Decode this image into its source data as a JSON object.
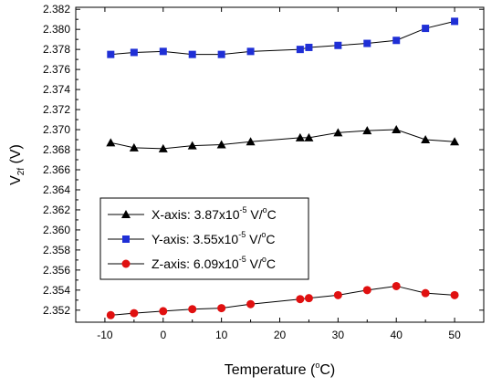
{
  "chart_data": {
    "type": "line",
    "xlabel": "Temperature (",
    "xlabel_degree": "o",
    "xlabel_unit": "C)",
    "ylabel_main": "V",
    "ylabel_sub": "2f",
    "ylabel_unit": " (V)",
    "xlim": [
      -15,
      55
    ],
    "ylim": [
      2.3508,
      2.3822
    ],
    "x_ticks": [
      -10,
      0,
      10,
      20,
      30,
      40,
      50
    ],
    "x_tick_labels": [
      "-10",
      "0",
      "10",
      "20",
      "30",
      "40",
      "50"
    ],
    "y_ticks": [
      2.352,
      2.354,
      2.356,
      2.358,
      2.36,
      2.362,
      2.364,
      2.366,
      2.368,
      2.37,
      2.372,
      2.374,
      2.376,
      2.378,
      2.38,
      2.382
    ],
    "y_tick_labels": [
      "2.352",
      "2.354",
      "2.356",
      "2.358",
      "2.360",
      "2.362",
      "2.364",
      "2.366",
      "2.368",
      "2.370",
      "2.372",
      "2.374",
      "2.376",
      "2.378",
      "2.380",
      "2.382"
    ],
    "grid": false,
    "legend_placement": "center-left",
    "series": [
      {
        "axis": "X-axis: 3.87x10",
        "exp": "-5",
        "unit_pre": " V/",
        "unit_deg": "o",
        "unit_post": "C",
        "marker": "triangle",
        "color": "#000000",
        "x": [
          -9,
          -5,
          0,
          5,
          10,
          15,
          23.5,
          25,
          30,
          35,
          40,
          45,
          50
        ],
        "y": [
          2.3687,
          2.3682,
          2.3681,
          2.3684,
          2.3685,
          2.3688,
          2.3692,
          2.3692,
          2.3697,
          2.3699,
          2.37,
          2.369,
          2.3688
        ]
      },
      {
        "axis": "Y-axis: 3.55x10",
        "exp": "-5",
        "unit_pre": " V/",
        "unit_deg": "o",
        "unit_post": "C",
        "marker": "square",
        "color": "#1f2fd6",
        "x": [
          -9,
          -5,
          0,
          5,
          10,
          15,
          23.5,
          25,
          30,
          35,
          40,
          45,
          50
        ],
        "y": [
          2.3775,
          2.3777,
          2.3778,
          2.3775,
          2.3775,
          2.3778,
          2.378,
          2.3782,
          2.3784,
          2.3786,
          2.3789,
          2.3801,
          2.3808
        ]
      },
      {
        "axis": "Z-axis: 6.09x10",
        "exp": "-5",
        "unit_pre": " V/",
        "unit_deg": "o",
        "unit_post": "C",
        "marker": "circle",
        "color": "#e01010",
        "x": [
          -9,
          -5,
          0,
          5,
          10,
          15,
          23.5,
          25,
          30,
          35,
          40,
          45,
          50
        ],
        "y": [
          2.3515,
          2.3517,
          2.3519,
          2.3521,
          2.3522,
          2.3526,
          2.3531,
          2.3532,
          2.3535,
          2.354,
          2.3544,
          2.3537,
          2.3535
        ]
      }
    ]
  }
}
